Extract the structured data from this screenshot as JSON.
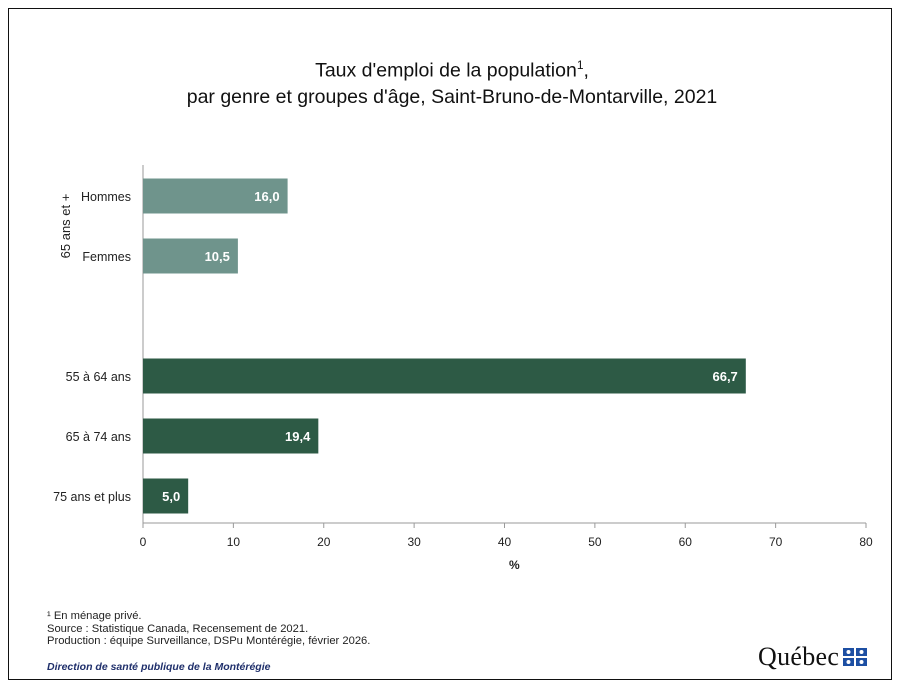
{
  "title": {
    "line1": "Taux d'emploi de la population",
    "line1_sup": "1",
    "line1_end": ",",
    "line2": "par genre et groupes d'âge, Saint-Bruno-de-Montarville, 2021"
  },
  "chart_data": {
    "type": "bar",
    "orientation": "horizontal",
    "title": "Taux d'emploi de la population¹, par genre et groupes d'âge, Saint-Bruno-de-Montarville, 2021",
    "xlabel": "%",
    "ylabel": "",
    "xlim": [
      0,
      80
    ],
    "xticks": [
      0,
      10,
      20,
      30,
      40,
      50,
      60,
      70,
      80
    ],
    "grid": false,
    "groups": [
      {
        "label": "65 ans et +",
        "color": "#6f948c",
        "bars": [
          {
            "category": "Hommes",
            "value": 16.0,
            "label": "16,0"
          },
          {
            "category": "Femmes",
            "value": 10.5,
            "label": "10,5"
          }
        ]
      },
      {
        "label": "",
        "color": "#2d5a45",
        "bars": [
          {
            "category": "55 à 64 ans",
            "value": 66.7,
            "label": "66,7"
          },
          {
            "category": "65 à 74 ans",
            "value": 19.4,
            "label": "19,4"
          },
          {
            "category": "75 ans et plus",
            "value": 5.0,
            "label": "5,0"
          }
        ]
      }
    ]
  },
  "footnotes": {
    "note1": "¹ En ménage privé.",
    "source": "Source : Statistique Canada, Recensement de 2021.",
    "production": "Production : équipe Surveillance, DSPu Montérégie, février 2026."
  },
  "department": "Direction de santé publique de la Montérégie",
  "logo": {
    "text": "Québec",
    "flag_color": "#1d4fa3"
  }
}
